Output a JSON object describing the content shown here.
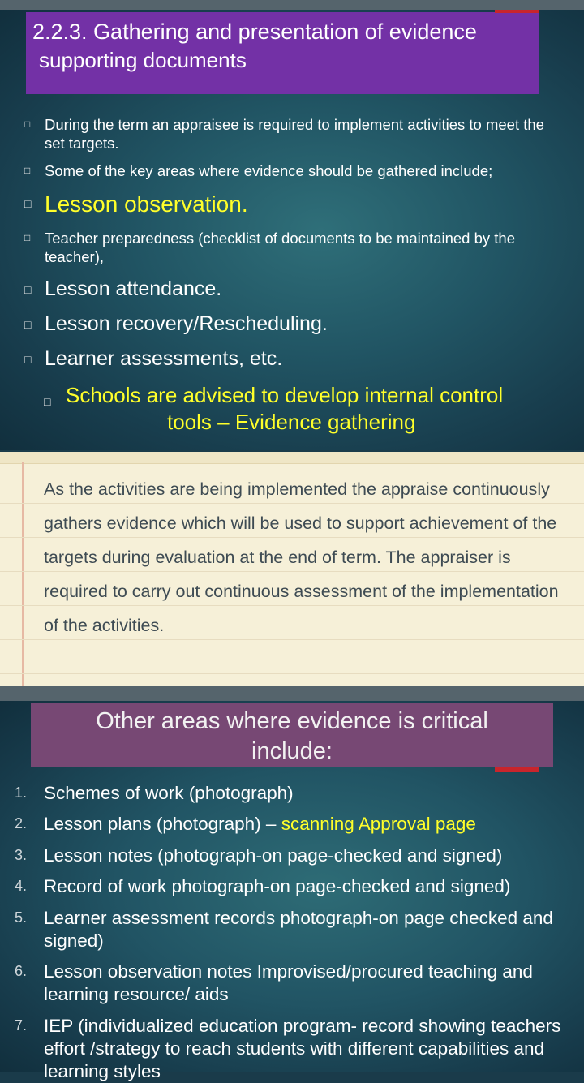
{
  "slide1": {
    "title_line1": "2.2.3. Gathering and presentation of evidence",
    "title_line2": "supporting documents",
    "bullet_mark": "□",
    "bullets": [
      "During the term an appraisee is required to implement activities to meet the set targets.",
      "Some of the key areas where evidence should be gathered include;",
      "Lesson observation.",
      "Teacher preparedness (checklist of documents to be maintained by the teacher),",
      "Lesson attendance.",
      "Lesson recovery/Rescheduling.",
      "Learner assessments, etc."
    ],
    "callout_line1": "Schools are advised to develop internal control",
    "callout_line2": "tools – Evidence gathering",
    "colors": {
      "title_bg": "#7331a6",
      "highlight": "#ffff2a",
      "accent_bar": "#c8252c"
    }
  },
  "slide2": {
    "paragraph": "As the activities are being implemented the appraise continuously gathers evidence which will be used to support achievement of the targets during evaluation at the end of term.  The appraiser is required to carry out continuous assessment of the implementation of the activities."
  },
  "slide3": {
    "title_line1": "Other areas where evidence is critical",
    "title_line2": "include:",
    "items": [
      {
        "num": "1.",
        "text": "Schemes of work (photograph)"
      },
      {
        "num": "2.",
        "text": "Lesson plans (photograph) – ",
        "highlight": "scanning Approval page"
      },
      {
        "num": "3.",
        "text": "Lesson notes (photograph-on page-checked and signed)"
      },
      {
        "num": "4.",
        "text": "Record of work photograph-on page-checked and signed)"
      },
      {
        "num": "5.",
        "text": "Learner assessment records photograph-on page checked and signed)"
      },
      {
        "num": "6.",
        "text": "Lesson observation notes Improvised/procured teaching and learning resource/ aids"
      },
      {
        "num": "7.",
        "text": "IEP (individualized education program- record showing teachers effort /strategy to reach students with different capabilities and learning styles"
      }
    ],
    "colors": {
      "title_bg": "#774874"
    }
  }
}
